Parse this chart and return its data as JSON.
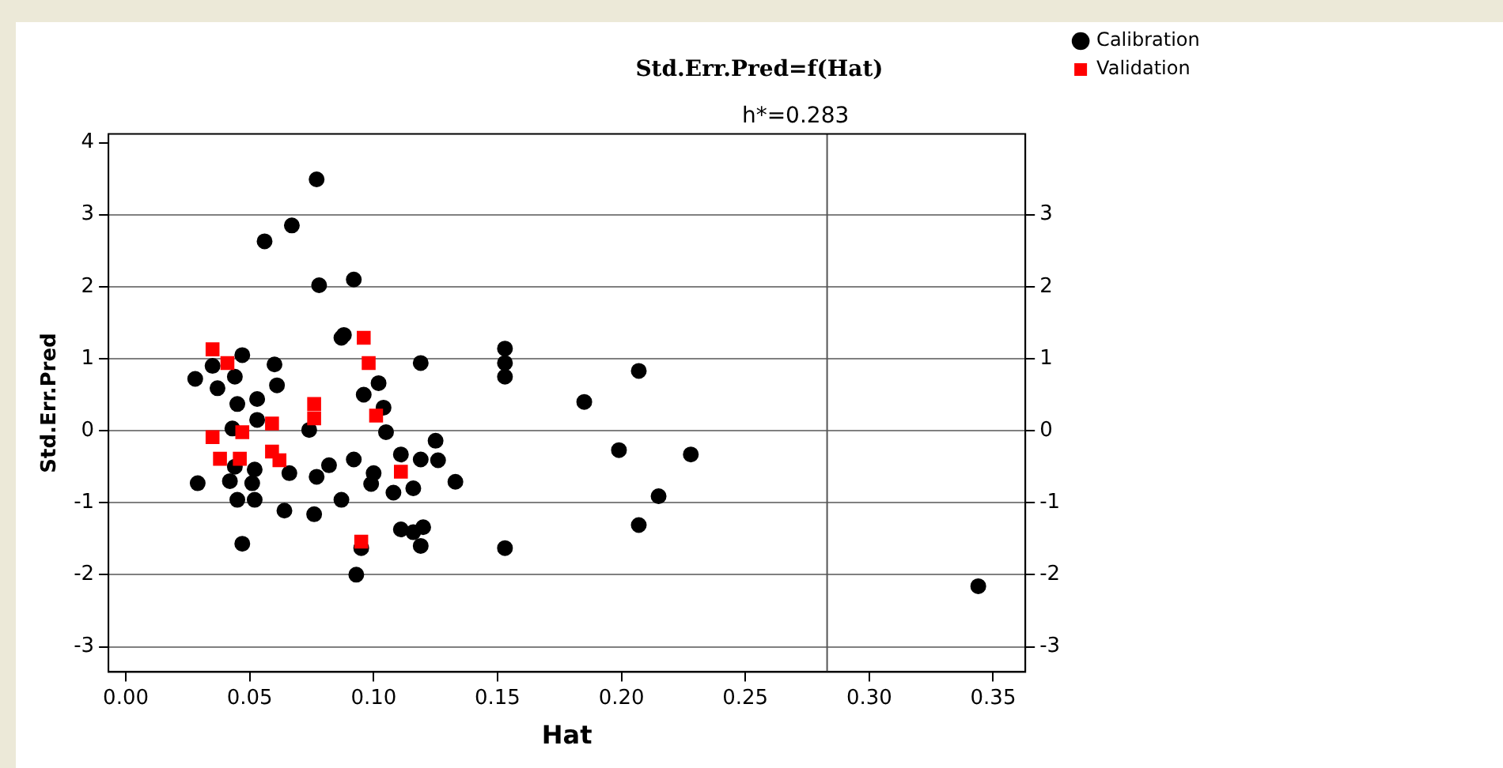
{
  "chart_data": {
    "type": "scatter",
    "title": "Std.Err.Pred=f(Hat)",
    "xlabel": "Hat",
    "ylabel": "Std.Err.Pred",
    "xlim": [
      -0.007,
      0.363
    ],
    "ylim": [
      -3.35,
      4.12
    ],
    "y2lim": [
      -3.35,
      4.12
    ],
    "xticks": [
      {
        "value": 0,
        "label": "0.00"
      },
      {
        "value": 0.05,
        "label": "0.05"
      },
      {
        "value": 0.1,
        "label": "0.10"
      },
      {
        "value": 0.15,
        "label": "0.15"
      },
      {
        "value": 0.2,
        "label": "0.20"
      },
      {
        "value": 0.25,
        "label": "0.25"
      },
      {
        "value": 0.3,
        "label": "0.30"
      },
      {
        "value": 0.35,
        "label": "0.35"
      }
    ],
    "yticks": [
      -3,
      -2,
      -1,
      0,
      1,
      2,
      3,
      4
    ],
    "y2ticks": [
      -3,
      -2,
      -1,
      0,
      1,
      2,
      3
    ],
    "grid": "y",
    "legend": "top right",
    "ref_lines": [
      {
        "axis": "x",
        "value": 0.283,
        "label": "h*=0.283",
        "color": "#555555"
      }
    ],
    "series": [
      {
        "name": "Calibration",
        "color": "#000000",
        "marker": "circle",
        "x": [
          0.077,
          0.067,
          0.056,
          0.078,
          0.092,
          0.087,
          0.088,
          0.047,
          0.035,
          0.028,
          0.044,
          0.06,
          0.037,
          0.061,
          0.045,
          0.053,
          0.096,
          0.102,
          0.104,
          0.119,
          0.153,
          0.153,
          0.153,
          0.207,
          0.185,
          0.043,
          0.053,
          0.074,
          0.105,
          0.125,
          0.111,
          0.092,
          0.119,
          0.126,
          0.082,
          0.1,
          0.066,
          0.077,
          0.052,
          0.044,
          0.029,
          0.042,
          0.051,
          0.099,
          0.116,
          0.108,
          0.133,
          0.045,
          0.052,
          0.087,
          0.064,
          0.076,
          0.111,
          0.116,
          0.12,
          0.119,
          0.095,
          0.047,
          0.093,
          0.153,
          0.199,
          0.228,
          0.215,
          0.207,
          0.344
        ],
        "values": [
          3.49,
          2.85,
          2.63,
          2.02,
          2.1,
          1.29,
          1.33,
          1.05,
          0.9,
          0.72,
          0.75,
          0.92,
          0.59,
          0.63,
          0.37,
          0.44,
          0.5,
          0.66,
          0.32,
          0.94,
          1.14,
          0.94,
          0.75,
          0.83,
          0.4,
          0.03,
          0.15,
          0.01,
          -0.02,
          -0.14,
          -0.33,
          -0.4,
          -0.4,
          -0.41,
          -0.48,
          -0.59,
          -0.59,
          -0.64,
          -0.54,
          -0.5,
          -0.73,
          -0.7,
          -0.73,
          -0.74,
          -0.8,
          -0.86,
          -0.71,
          -0.96,
          -0.96,
          -0.96,
          -1.11,
          -1.16,
          -1.37,
          -1.41,
          -1.34,
          -1.6,
          -1.63,
          -1.57,
          -2.0,
          -1.63,
          -0.27,
          -0.33,
          -0.91,
          -1.31,
          -2.16
        ]
      },
      {
        "name": "Validation",
        "color": "#ff0000",
        "marker": "square",
        "x": [
          0.035,
          0.041,
          0.096,
          0.098,
          0.076,
          0.076,
          0.059,
          0.101,
          0.035,
          0.047,
          0.038,
          0.046,
          0.059,
          0.062,
          0.111,
          0.095
        ],
        "values": [
          1.13,
          0.94,
          1.29,
          0.94,
          0.37,
          0.17,
          0.1,
          0.21,
          -0.09,
          -0.02,
          -0.39,
          -0.39,
          -0.29,
          -0.41,
          -0.57,
          -1.54
        ]
      }
    ]
  }
}
